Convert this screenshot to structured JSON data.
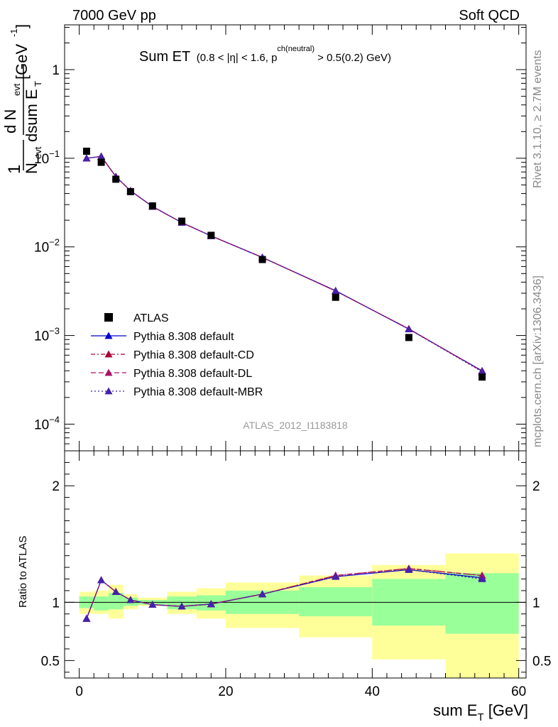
{
  "header": {
    "left": "7000 GeV pp",
    "right": "Soft QCD"
  },
  "side_text": {
    "top": "Rivet 3.1.10, ≥ 2.7M events",
    "bottom": "mcplots.cern.ch [arXiv:1306.3436]"
  },
  "analysis_id": "ATLAS_2012_I1183818",
  "colors": {
    "data": "#000000",
    "default": "#0000cc",
    "default_cd": "#aa0033",
    "default_dl": "#aa1166",
    "default_mbr": "#4422aa",
    "band_inner": "#99ff99",
    "band_outer": "#ffff99"
  },
  "chart_data": [
    {
      "type": "line",
      "panel": "main",
      "title_main": "Sum ET",
      "title_cut_pre": "(0.8 < |",
      "title_eta": "η",
      "title_cut_mid": "| < 1.6, p",
      "title_sup": "ch(neutral)",
      "title_cut_post": " > 0.5(0.2) GeV)",
      "ylabel": {
        "one": "1",
        "n": "N",
        "evt": "evt",
        "dn": "d N",
        "dsum": "dsum E",
        "t": "T",
        "unit": "[GeV",
        "unit_sup": "-1",
        "unit_close": "]"
      },
      "yscale": "log",
      "ylim": [
        5e-05,
        3.2
      ],
      "xlim": [
        -2,
        61
      ],
      "y_ticks": [
        {
          "v": 1,
          "base": "1",
          "exp": ""
        },
        {
          "v": 0.1,
          "base": "10",
          "exp": "−1"
        },
        {
          "v": 0.01,
          "base": "10",
          "exp": "−2"
        },
        {
          "v": 0.001,
          "base": "10",
          "exp": "−3"
        },
        {
          "v": 0.0001,
          "base": "10",
          "exp": "−4"
        }
      ],
      "legend_position": "lower-left",
      "legend": [
        {
          "name": "ATLAS",
          "style": "square"
        },
        {
          "name": "Pythia 8.308 default",
          "style": "solid"
        },
        {
          "name": "Pythia 8.308 default-CD",
          "style": "dashdot"
        },
        {
          "name": "Pythia 8.308 default-DL",
          "style": "dashed"
        },
        {
          "name": "Pythia 8.308 default-MBR",
          "style": "dotted"
        }
      ],
      "data_points": {
        "x": [
          1,
          3,
          5,
          7,
          10,
          14,
          18,
          25,
          35,
          45,
          55
        ],
        "y": [
          0.12,
          0.09,
          0.058,
          0.042,
          0.029,
          0.0195,
          0.0135,
          0.0072,
          0.0027,
          0.00095,
          0.00034
        ]
      },
      "series": [
        {
          "name": "Pythia 8.308 default",
          "key": "default",
          "x": [
            1,
            3,
            5,
            7,
            10,
            14,
            18,
            25,
            35,
            45,
            55
          ],
          "y": [
            0.1,
            0.105,
            0.062,
            0.043,
            0.0285,
            0.0188,
            0.0133,
            0.0076,
            0.0032,
            0.00118,
            0.0004
          ]
        },
        {
          "name": "Pythia 8.308 default-CD",
          "key": "default_cd",
          "x": [
            1,
            3,
            5,
            7,
            10,
            14,
            18,
            25,
            35,
            45,
            55
          ],
          "y": [
            0.1,
            0.105,
            0.062,
            0.043,
            0.0285,
            0.0188,
            0.0133,
            0.0076,
            0.00318,
            0.00119,
            0.000395
          ]
        },
        {
          "name": "Pythia 8.308 default-DL",
          "key": "default_dl",
          "x": [
            1,
            3,
            5,
            7,
            10,
            14,
            18,
            25,
            35,
            45,
            55
          ],
          "y": [
            0.1,
            0.105,
            0.062,
            0.043,
            0.0285,
            0.0188,
            0.0133,
            0.0076,
            0.00318,
            0.00119,
            0.000395
          ]
        },
        {
          "name": "Pythia 8.308 default-MBR",
          "key": "default_mbr",
          "x": [
            1,
            3,
            5,
            7,
            10,
            14,
            18,
            25,
            35,
            45,
            55
          ],
          "y": [
            0.1,
            0.105,
            0.062,
            0.043,
            0.0285,
            0.0188,
            0.0133,
            0.0076,
            0.0032,
            0.00118,
            0.00039
          ]
        }
      ]
    },
    {
      "type": "line",
      "panel": "ratio",
      "ylabel": "Ratio to ATLAS",
      "xlabel_main": "sum E",
      "xlabel_sub": "T",
      "xlabel_unit": " [GeV]",
      "ylim": [
        0.35,
        2.3
      ],
      "xlim": [
        -2,
        61
      ],
      "x_ticks": [
        0,
        20,
        40,
        60
      ],
      "y_ticks": [
        {
          "v": 0.5,
          "label": "0.5"
        },
        {
          "v": 1,
          "label": "1"
        },
        {
          "v": 2,
          "label": "2"
        }
      ],
      "bands": [
        {
          "x0": 0,
          "x1": 2,
          "inner": [
            0.95,
            1.05
          ],
          "outer": [
            0.9,
            1.09
          ]
        },
        {
          "x0": 2,
          "x1": 4,
          "inner": [
            0.93,
            1.05
          ],
          "outer": [
            0.9,
            1.1
          ]
        },
        {
          "x0": 4,
          "x1": 6,
          "inner": [
            0.94,
            1.08
          ],
          "outer": [
            0.86,
            1.15
          ]
        },
        {
          "x0": 6,
          "x1": 8,
          "inner": [
            0.97,
            1.04
          ],
          "outer": [
            0.94,
            1.07
          ]
        },
        {
          "x0": 8,
          "x1": 12,
          "inner": [
            0.98,
            1.02
          ],
          "outer": [
            0.97,
            1.04
          ]
        },
        {
          "x0": 12,
          "x1": 16,
          "inner": [
            0.94,
            1.05
          ],
          "outer": [
            0.9,
            1.09
          ]
        },
        {
          "x0": 16,
          "x1": 20,
          "inner": [
            0.93,
            1.06
          ],
          "outer": [
            0.86,
            1.12
          ]
        },
        {
          "x0": 20,
          "x1": 30,
          "inner": [
            0.9,
            1.1
          ],
          "outer": [
            0.78,
            1.17
          ]
        },
        {
          "x0": 30,
          "x1": 40,
          "inner": [
            0.88,
            1.13
          ],
          "outer": [
            0.7,
            1.23
          ]
        },
        {
          "x0": 40,
          "x1": 50,
          "inner": [
            0.8,
            1.2
          ],
          "outer": [
            0.51,
            1.32
          ]
        },
        {
          "x0": 50,
          "x1": 60,
          "inner": [
            0.73,
            1.25
          ],
          "outer": [
            0.35,
            1.42
          ]
        }
      ],
      "series": [
        {
          "name": "Pythia 8.308 default",
          "key": "default",
          "x": [
            1,
            3,
            5,
            7,
            10,
            14,
            18,
            25,
            35,
            45,
            55
          ],
          "y": [
            0.86,
            1.19,
            1.09,
            1.02,
            0.98,
            0.965,
            0.985,
            1.07,
            1.22,
            1.28,
            1.21
          ]
        },
        {
          "name": "Pythia 8.308 default-CD",
          "key": "default_cd",
          "x": [
            1,
            3,
            5,
            7,
            10,
            14,
            18,
            25,
            35,
            45,
            55
          ],
          "y": [
            0.86,
            1.19,
            1.09,
            1.02,
            0.98,
            0.965,
            0.985,
            1.07,
            1.23,
            1.29,
            1.23
          ]
        },
        {
          "name": "Pythia 8.308 default-DL",
          "key": "default_dl",
          "x": [
            1,
            3,
            5,
            7,
            10,
            14,
            18,
            25,
            35,
            45,
            55
          ],
          "y": [
            0.86,
            1.19,
            1.09,
            1.02,
            0.98,
            0.965,
            0.985,
            1.07,
            1.23,
            1.29,
            1.23
          ]
        },
        {
          "name": "Pythia 8.308 default-MBR",
          "key": "default_mbr",
          "x": [
            1,
            3,
            5,
            7,
            10,
            14,
            18,
            25,
            35,
            45,
            55
          ],
          "y": [
            0.86,
            1.19,
            1.09,
            1.02,
            0.98,
            0.965,
            0.985,
            1.07,
            1.22,
            1.28,
            1.2
          ]
        }
      ]
    }
  ]
}
